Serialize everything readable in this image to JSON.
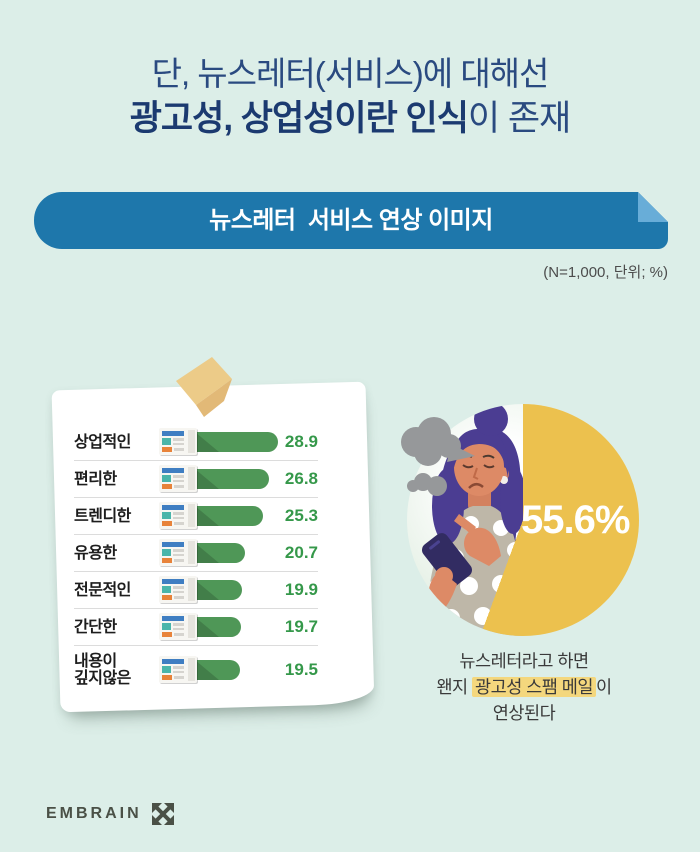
{
  "page": {
    "background_color": "#dceee8"
  },
  "header": {
    "line1": "단, 뉴스레터(서비스)에 대해선",
    "line2_bold": "광고성, 상업성이란 인식",
    "line2_rest": "이 존재"
  },
  "banner": {
    "title": "뉴스레터  서비스 연상 이미지",
    "bg_color": "#1e77ab",
    "fold_color": "#68add8"
  },
  "note": "(N=1,000, 단위; %)",
  "chart_data": [
    {
      "type": "bar",
      "title": "뉴스레터 서비스 연상 이미지",
      "sample_note": "(N=1,000, 단위; %)",
      "unit": "%",
      "orientation": "horizontal",
      "categories": [
        "상업적인",
        "편리한",
        "트렌디한",
        "유용한",
        "전문적인",
        "간단한",
        "내용이 깊지않은"
      ],
      "display_labels": [
        "상업적인",
        "편리한",
        "트렌디한",
        "유용한",
        "전문적인",
        "간단한",
        "내용이\n깊지않은"
      ],
      "values": [
        28.9,
        26.8,
        25.3,
        20.7,
        19.9,
        19.7,
        19.5
      ],
      "xlim": [
        0,
        30
      ],
      "grid": false,
      "bar_color": "#4f9757",
      "value_color": "#35984a"
    },
    {
      "type": "pie",
      "label": "55.6%",
      "percent": 55.6,
      "slice_color": "#ecc14e",
      "caption": {
        "line1": "뉴스레터라고 하면",
        "line2_prefix": "왠지 ",
        "line2_highlight": "광고성 스팸 메일",
        "line2_suffix": "이",
        "line3": "연상된다",
        "highlight_color": "#f4d77d"
      }
    }
  ],
  "footer": {
    "logo_text": "EMBRAIN"
  }
}
